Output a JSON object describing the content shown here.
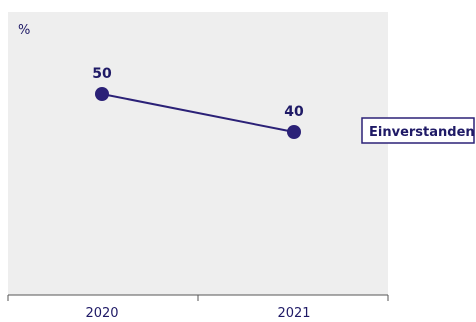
{
  "chart_data": {
    "type": "line",
    "unit_label": "%",
    "x": [
      "2020",
      "2021"
    ],
    "series": [
      {
        "name": "Einverstanden",
        "values": [
          50,
          40
        ]
      }
    ],
    "ylim": [
      0,
      100
    ],
    "grid": false,
    "legend_placement": "right",
    "colors": {
      "plot_background": "#eeeeee",
      "series": "#2b2177",
      "axis": "#555555"
    }
  }
}
